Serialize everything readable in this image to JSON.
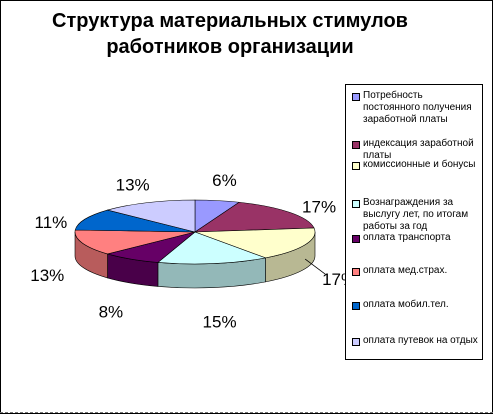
{
  "chart_data": {
    "type": "pie",
    "style": "3d-exploded-none",
    "title_lines": [
      "Структура материальных стимулов",
      "работников организации"
    ],
    "categories": [
      "Потребность постоянного получения заработной платы",
      "индексация заработной платы",
      "комиссионные и бонусы",
      "Вознаграждения за выслугу лет, по итогам работы за год",
      "оплата транспорта",
      "оплата мед.страх.",
      "оплата мобил.тел.",
      "оплата путевок на отдых"
    ],
    "values": [
      6,
      17,
      17,
      15,
      8,
      13,
      11,
      13
    ],
    "value_labels": [
      "6%",
      "17%",
      "17%",
      "15%",
      "8%",
      "13%",
      "11%",
      "13%"
    ],
    "colors": [
      "#9999FF",
      "#993366",
      "#FFFFCC",
      "#CCFFFF",
      "#660066",
      "#FF8080",
      "#0066CC",
      "#CCCCFF"
    ],
    "legend_position": "right"
  }
}
